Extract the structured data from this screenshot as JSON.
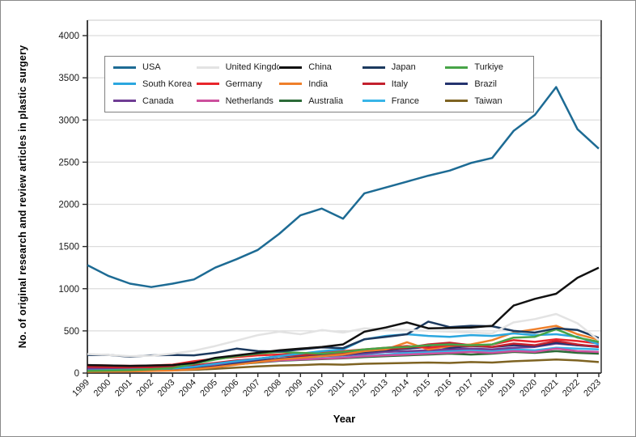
{
  "figure": {
    "y_axis_label": "No. of original research and review articles in plastic surgery",
    "x_axis_label": "Year"
  },
  "chart_data": {
    "type": "line",
    "title": "",
    "xlabel": "Year",
    "ylabel": "No. of original research and review articles in plastic surgery",
    "ylim": [
      0,
      4000
    ],
    "ytick_step": 500,
    "grid": "horizontal-gridlines-on",
    "legend_position": "inside-top-left",
    "x": [
      1999,
      2000,
      2001,
      2002,
      2003,
      2004,
      2005,
      2006,
      2007,
      2008,
      2009,
      2010,
      2011,
      2012,
      2013,
      2014,
      2015,
      2016,
      2017,
      2018,
      2019,
      2020,
      2021,
      2022,
      2023
    ],
    "series": [
      {
        "name": "USA",
        "color": "#1d6b94",
        "values": [
          1280,
          1150,
          1060,
          1020,
          1060,
          1110,
          1250,
          1350,
          1460,
          1650,
          1870,
          1950,
          1830,
          2130,
          2200,
          2270,
          2340,
          2400,
          2490,
          2550,
          2870,
          3060,
          3390,
          2890,
          2660
        ]
      },
      {
        "name": "United Kingdom",
        "color": "#e3e3e3",
        "values": [
          225,
          215,
          200,
          205,
          230,
          265,
          320,
          385,
          450,
          490,
          460,
          510,
          480,
          530,
          520,
          510,
          500,
          490,
          480,
          470,
          600,
          640,
          700,
          590,
          390
        ]
      },
      {
        "name": "China",
        "color": "#111111",
        "values": [
          95,
          90,
          85,
          90,
          95,
          120,
          180,
          210,
          240,
          270,
          290,
          310,
          340,
          490,
          540,
          600,
          530,
          535,
          540,
          560,
          800,
          880,
          940,
          1130,
          1250
        ]
      },
      {
        "name": "Japan",
        "color": "#1c3a5f",
        "values": [
          215,
          215,
          195,
          210,
          215,
          210,
          240,
          290,
          260,
          255,
          280,
          305,
          295,
          400,
          430,
          460,
          610,
          545,
          560,
          555,
          500,
          480,
          530,
          510,
          415
        ]
      },
      {
        "name": "Turkiye",
        "color": "#47a447",
        "values": [
          25,
          30,
          35,
          45,
          60,
          110,
          160,
          200,
          230,
          250,
          240,
          230,
          250,
          280,
          300,
          310,
          330,
          340,
          330,
          340,
          420,
          430,
          520,
          420,
          370
        ]
      },
      {
        "name": "South Korea",
        "color": "#2ba7df",
        "values": [
          30,
          35,
          40,
          45,
          55,
          75,
          110,
          140,
          170,
          200,
          230,
          260,
          280,
          400,
          440,
          460,
          440,
          430,
          450,
          440,
          470,
          450,
          460,
          430,
          340
        ]
      },
      {
        "name": "Germany",
        "color": "#e8252b",
        "values": [
          95,
          90,
          85,
          90,
          100,
          140,
          170,
          190,
          210,
          220,
          230,
          250,
          260,
          280,
          300,
          320,
          300,
          330,
          320,
          340,
          390,
          370,
          400,
          380,
          350
        ]
      },
      {
        "name": "India",
        "color": "#ef7f2a",
        "values": [
          15,
          18,
          20,
          25,
          30,
          45,
          70,
          100,
          130,
          160,
          180,
          200,
          220,
          260,
          280,
          365,
          280,
          320,
          340,
          390,
          480,
          520,
          560,
          460,
          395
        ]
      },
      {
        "name": "Italy",
        "color": "#c3202e",
        "values": [
          75,
          70,
          65,
          70,
          75,
          90,
          120,
          150,
          170,
          200,
          210,
          230,
          240,
          260,
          280,
          300,
          340,
          360,
          330,
          310,
          350,
          330,
          380,
          340,
          310
        ]
      },
      {
        "name": "Brazil",
        "color": "#24336e",
        "values": [
          25,
          28,
          30,
          35,
          40,
          55,
          80,
          110,
          140,
          170,
          190,
          210,
          220,
          250,
          270,
          290,
          310,
          300,
          320,
          310,
          330,
          320,
          360,
          330,
          310
        ]
      },
      {
        "name": "Canada",
        "color": "#6f3d94",
        "values": [
          55,
          58,
          60,
          65,
          70,
          85,
          110,
          130,
          150,
          170,
          190,
          200,
          210,
          230,
          250,
          260,
          270,
          280,
          290,
          280,
          300,
          310,
          350,
          330,
          320
        ]
      },
      {
        "name": "Netherlands",
        "color": "#cc4f9d",
        "values": [
          45,
          48,
          50,
          55,
          60,
          70,
          90,
          110,
          130,
          150,
          160,
          170,
          180,
          200,
          210,
          220,
          230,
          240,
          250,
          240,
          260,
          250,
          290,
          260,
          250
        ]
      },
      {
        "name": "Australia",
        "color": "#2c6b38",
        "values": [
          40,
          42,
          45,
          50,
          55,
          65,
          85,
          105,
          125,
          145,
          155,
          165,
          175,
          190,
          200,
          210,
          220,
          230,
          220,
          230,
          250,
          240,
          260,
          240,
          230
        ]
      },
      {
        "name": "France",
        "color": "#38b5e8",
        "values": [
          60,
          62,
          60,
          65,
          70,
          80,
          100,
          120,
          140,
          155,
          165,
          175,
          185,
          210,
          220,
          240,
          250,
          260,
          270,
          260,
          280,
          270,
          300,
          290,
          280
        ]
      },
      {
        "name": "Taiwan",
        "color": "#7e6322",
        "values": [
          25,
          27,
          28,
          30,
          32,
          38,
          50,
          65,
          80,
          90,
          95,
          105,
          100,
          110,
          115,
          120,
          125,
          120,
          130,
          125,
          140,
          150,
          160,
          150,
          130
        ]
      }
    ]
  }
}
